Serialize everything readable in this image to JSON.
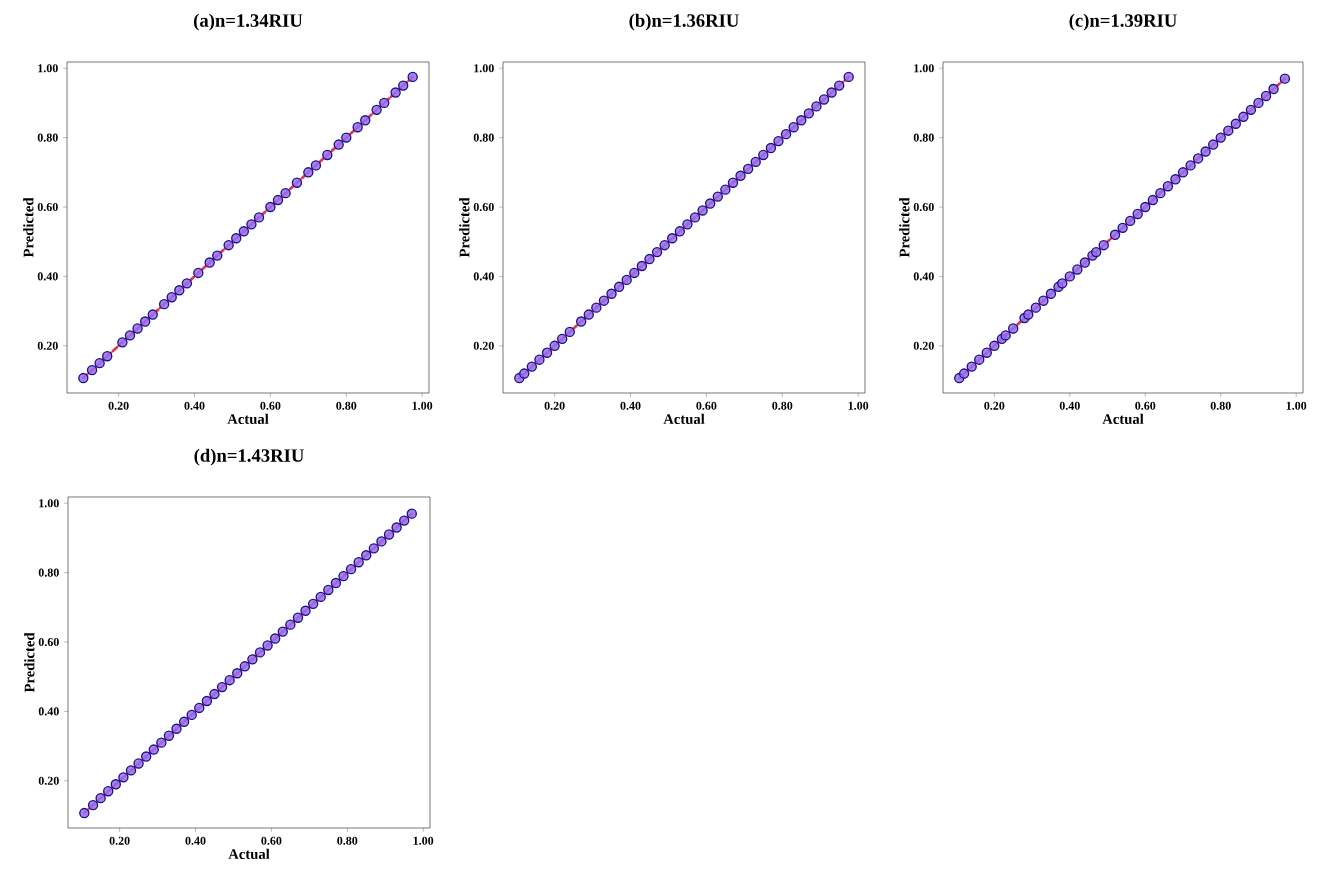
{
  "chart_data": [
    {
      "type": "scatter",
      "title": "(a)n=1.34RIU",
      "xlabel": "Actual",
      "ylabel": "Predicted",
      "marker": "circle",
      "grid": false,
      "xlim": [
        0.064,
        1.018
      ],
      "ylim": [
        0.064,
        1.018
      ],
      "xticks": [
        {
          "value": 0.2,
          "label": "0.20"
        },
        {
          "value": 0.4,
          "label": "0.40"
        },
        {
          "value": 0.6,
          "label": "0.60"
        },
        {
          "value": 0.8,
          "label": "0.80"
        },
        {
          "value": 1.0,
          "label": "1.00"
        }
      ],
      "yticks": [
        {
          "value": 0.2,
          "label": "0.20"
        },
        {
          "value": 0.4,
          "label": "0.40"
        },
        {
          "value": 0.6,
          "label": "0.60"
        },
        {
          "value": 0.8,
          "label": "0.80"
        },
        {
          "value": 1.0,
          "label": "1.00"
        }
      ],
      "series": [
        {
          "color": "#9a6cf0",
          "x": [
            0.107,
            0.13,
            0.15,
            0.17,
            0.21,
            0.23,
            0.25,
            0.27,
            0.29,
            0.32,
            0.34,
            0.36,
            0.38,
            0.41,
            0.44,
            0.46,
            0.49,
            0.51,
            0.53,
            0.55,
            0.57,
            0.6,
            0.62,
            0.64,
            0.67,
            0.7,
            0.72,
            0.75,
            0.78,
            0.8,
            0.83,
            0.85,
            0.88,
            0.9,
            0.93,
            0.95,
            0.975
          ],
          "values": [
            0.107,
            0.13,
            0.15,
            0.17,
            0.21,
            0.23,
            0.25,
            0.27,
            0.29,
            0.32,
            0.34,
            0.36,
            0.38,
            0.41,
            0.44,
            0.46,
            0.49,
            0.51,
            0.53,
            0.55,
            0.57,
            0.6,
            0.62,
            0.64,
            0.67,
            0.7,
            0.72,
            0.75,
            0.78,
            0.8,
            0.83,
            0.85,
            0.88,
            0.9,
            0.93,
            0.95,
            0.975
          ]
        },
        {
          "type": "line",
          "marker": "none",
          "color": "#e8304a",
          "line_style": "dashed",
          "x": [
            0.107,
            0.975
          ],
          "values": [
            0.107,
            0.975
          ]
        }
      ]
    },
    {
      "type": "scatter",
      "title": "(b)n=1.36RIU",
      "xlabel": "Actual",
      "ylabel": "Predicted",
      "marker": "circle",
      "grid": false,
      "xlim": [
        0.064,
        1.018
      ],
      "ylim": [
        0.064,
        1.018
      ],
      "xticks": [
        {
          "value": 0.2,
          "label": "0.20"
        },
        {
          "value": 0.4,
          "label": "0.40"
        },
        {
          "value": 0.6,
          "label": "0.60"
        },
        {
          "value": 0.8,
          "label": "0.80"
        },
        {
          "value": 1.0,
          "label": "1.00"
        }
      ],
      "yticks": [
        {
          "value": 0.2,
          "label": "0.20"
        },
        {
          "value": 0.4,
          "label": "0.40"
        },
        {
          "value": 0.6,
          "label": "0.60"
        },
        {
          "value": 0.8,
          "label": "0.80"
        },
        {
          "value": 1.0,
          "label": "1.00"
        }
      ],
      "series": [
        {
          "color": "#9a6cf0",
          "x": [
            0.107,
            0.12,
            0.14,
            0.16,
            0.18,
            0.2,
            0.22,
            0.24,
            0.27,
            0.29,
            0.31,
            0.33,
            0.35,
            0.37,
            0.39,
            0.41,
            0.43,
            0.45,
            0.47,
            0.49,
            0.51,
            0.53,
            0.55,
            0.57,
            0.59,
            0.61,
            0.63,
            0.65,
            0.67,
            0.69,
            0.71,
            0.73,
            0.75,
            0.77,
            0.79,
            0.81,
            0.83,
            0.85,
            0.87,
            0.89,
            0.91,
            0.93,
            0.95,
            0.975
          ],
          "values": [
            0.107,
            0.12,
            0.14,
            0.16,
            0.18,
            0.2,
            0.22,
            0.24,
            0.27,
            0.29,
            0.31,
            0.33,
            0.35,
            0.37,
            0.39,
            0.41,
            0.43,
            0.45,
            0.47,
            0.49,
            0.51,
            0.53,
            0.55,
            0.57,
            0.59,
            0.61,
            0.63,
            0.65,
            0.67,
            0.69,
            0.71,
            0.73,
            0.75,
            0.77,
            0.79,
            0.81,
            0.83,
            0.85,
            0.87,
            0.89,
            0.91,
            0.93,
            0.95,
            0.975
          ]
        },
        {
          "type": "line",
          "marker": "none",
          "color": "#e8304a",
          "line_style": "dashed",
          "x": [
            0.107,
            0.975
          ],
          "values": [
            0.107,
            0.975
          ]
        }
      ]
    },
    {
      "type": "scatter",
      "title": "(c)n=1.39RIU",
      "xlabel": "Actual",
      "ylabel": "Predicted",
      "marker": "circle",
      "grid": false,
      "xlim": [
        0.064,
        1.018
      ],
      "ylim": [
        0.064,
        1.018
      ],
      "xticks": [
        {
          "value": 0.2,
          "label": "0.20"
        },
        {
          "value": 0.4,
          "label": "0.40"
        },
        {
          "value": 0.6,
          "label": "0.60"
        },
        {
          "value": 0.8,
          "label": "0.80"
        },
        {
          "value": 1.0,
          "label": "1.00"
        }
      ],
      "yticks": [
        {
          "value": 0.2,
          "label": "0.20"
        },
        {
          "value": 0.4,
          "label": "0.40"
        },
        {
          "value": 0.6,
          "label": "0.60"
        },
        {
          "value": 0.8,
          "label": "0.80"
        },
        {
          "value": 1.0,
          "label": "1.00"
        }
      ],
      "series": [
        {
          "color": "#9a6cf0",
          "x": [
            0.107,
            0.12,
            0.14,
            0.16,
            0.18,
            0.2,
            0.22,
            0.23,
            0.25,
            0.28,
            0.29,
            0.31,
            0.33,
            0.35,
            0.37,
            0.38,
            0.4,
            0.42,
            0.44,
            0.46,
            0.47,
            0.49,
            0.52,
            0.54,
            0.56,
            0.58,
            0.6,
            0.62,
            0.64,
            0.66,
            0.68,
            0.7,
            0.72,
            0.74,
            0.76,
            0.78,
            0.8,
            0.82,
            0.84,
            0.86,
            0.88,
            0.9,
            0.92,
            0.94,
            0.97
          ],
          "values": [
            0.107,
            0.12,
            0.14,
            0.16,
            0.18,
            0.2,
            0.22,
            0.23,
            0.25,
            0.28,
            0.29,
            0.31,
            0.33,
            0.35,
            0.37,
            0.38,
            0.4,
            0.42,
            0.44,
            0.46,
            0.47,
            0.49,
            0.52,
            0.54,
            0.56,
            0.58,
            0.6,
            0.62,
            0.64,
            0.66,
            0.68,
            0.7,
            0.72,
            0.74,
            0.76,
            0.78,
            0.8,
            0.82,
            0.84,
            0.86,
            0.88,
            0.9,
            0.92,
            0.94,
            0.97
          ]
        },
        {
          "type": "line",
          "marker": "none",
          "color": "#e8304a",
          "line_style": "dashed",
          "x": [
            0.107,
            0.97
          ],
          "values": [
            0.107,
            0.97
          ]
        }
      ]
    },
    {
      "type": "scatter",
      "title": "(d)n=1.43RIU",
      "xlabel": "Actual",
      "ylabel": "Predicted",
      "marker": "circle",
      "grid": false,
      "xlim": [
        0.064,
        1.018
      ],
      "ylim": [
        0.064,
        1.018
      ],
      "xticks": [
        {
          "value": 0.2,
          "label": "0.20"
        },
        {
          "value": 0.4,
          "label": "0.40"
        },
        {
          "value": 0.6,
          "label": "0.60"
        },
        {
          "value": 0.8,
          "label": "0.80"
        },
        {
          "value": 1.0,
          "label": "1.00"
        }
      ],
      "yticks": [
        {
          "value": 0.2,
          "label": "0.20"
        },
        {
          "value": 0.4,
          "label": "0.40"
        },
        {
          "value": 0.6,
          "label": "0.60"
        },
        {
          "value": 0.8,
          "label": "0.80"
        },
        {
          "value": 1.0,
          "label": "1.00"
        }
      ],
      "series": [
        {
          "color": "#9a6cf0",
          "x": [
            0.107,
            0.13,
            0.15,
            0.17,
            0.19,
            0.21,
            0.23,
            0.25,
            0.27,
            0.29,
            0.31,
            0.33,
            0.35,
            0.37,
            0.39,
            0.41,
            0.43,
            0.45,
            0.47,
            0.49,
            0.51,
            0.53,
            0.55,
            0.57,
            0.59,
            0.61,
            0.63,
            0.65,
            0.67,
            0.69,
            0.71,
            0.73,
            0.75,
            0.77,
            0.79,
            0.81,
            0.83,
            0.85,
            0.87,
            0.89,
            0.91,
            0.93,
            0.95,
            0.97
          ],
          "values": [
            0.107,
            0.13,
            0.15,
            0.17,
            0.19,
            0.21,
            0.23,
            0.25,
            0.27,
            0.29,
            0.31,
            0.33,
            0.35,
            0.37,
            0.39,
            0.41,
            0.43,
            0.45,
            0.47,
            0.49,
            0.51,
            0.53,
            0.55,
            0.57,
            0.59,
            0.61,
            0.63,
            0.65,
            0.67,
            0.69,
            0.71,
            0.73,
            0.75,
            0.77,
            0.79,
            0.81,
            0.83,
            0.85,
            0.87,
            0.89,
            0.91,
            0.93,
            0.95,
            0.97
          ]
        },
        {
          "type": "line",
          "marker": "none",
          "color": "#e8304a",
          "line_style": "dashed",
          "x": [
            0.107,
            0.97
          ],
          "values": [
            0.107,
            0.97
          ]
        }
      ]
    }
  ]
}
